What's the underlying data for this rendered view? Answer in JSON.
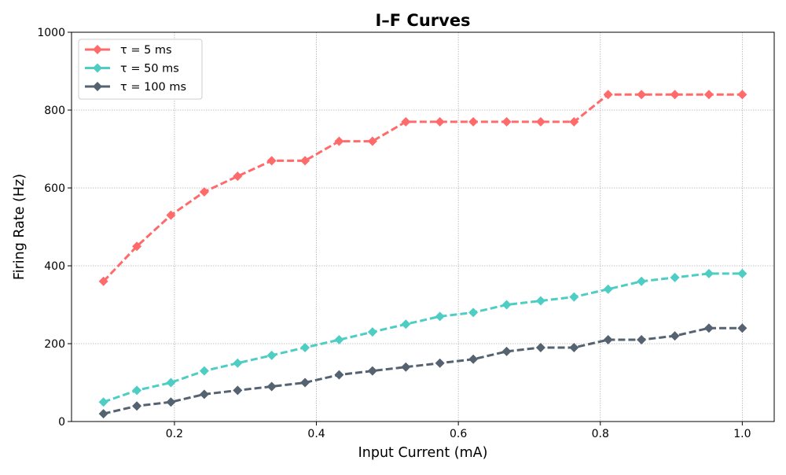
{
  "chart_data": {
    "type": "line",
    "title": "I–F Curves",
    "xlabel": "Input Current (mA)",
    "ylabel": "Firing Rate (Hz)",
    "xlim": [
      0.055,
      1.045
    ],
    "ylim": [
      0,
      1000
    ],
    "x_ticks": [
      0.2,
      0.4,
      0.6,
      0.8,
      1.0
    ],
    "x_tick_labels": [
      "0.2",
      "0.4",
      "0.6",
      "0.8",
      "1.0"
    ],
    "y_ticks": [
      0,
      200,
      400,
      600,
      800,
      1000
    ],
    "y_tick_labels": [
      "0",
      "200",
      "400",
      "600",
      "800",
      "1000"
    ],
    "grid": true,
    "legend_position": "top-left",
    "x": [
      0.1,
      0.147,
      0.195,
      0.242,
      0.289,
      0.337,
      0.384,
      0.432,
      0.479,
      0.526,
      0.574,
      0.621,
      0.668,
      0.716,
      0.763,
      0.811,
      0.858,
      0.905,
      0.953,
      1.0
    ],
    "series": [
      {
        "name": "τ = 5 ms",
        "color": "#ff6b6b",
        "values": [
          360,
          450,
          530,
          590,
          630,
          670,
          670,
          720,
          720,
          770,
          770,
          770,
          770,
          770,
          770,
          840,
          840,
          840,
          840,
          840
        ]
      },
      {
        "name": "τ = 50 ms",
        "color": "#4ecdc4",
        "values": [
          50,
          80,
          100,
          130,
          150,
          170,
          190,
          210,
          230,
          250,
          270,
          280,
          300,
          310,
          320,
          340,
          360,
          370,
          380,
          380
        ]
      },
      {
        "name": "τ = 100 ms",
        "color": "#556270",
        "values": [
          20,
          40,
          50,
          70,
          80,
          90,
          100,
          120,
          130,
          140,
          150,
          160,
          180,
          190,
          190,
          210,
          210,
          220,
          240,
          240
        ]
      }
    ]
  }
}
